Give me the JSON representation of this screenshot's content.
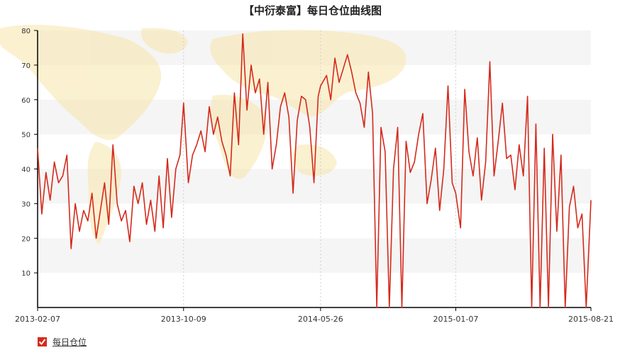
{
  "chart_data": {
    "type": "line",
    "title": "【中衍泰富】每日仓位曲线图",
    "xlabel": "",
    "ylabel": "",
    "ylim": [
      0,
      80
    ],
    "y_ticks": [
      10,
      20,
      30,
      40,
      50,
      60,
      70,
      80
    ],
    "x_ticks": [
      "2013-02-07",
      "2013-10-09",
      "2014-05-26",
      "2015-01-07",
      "2015-08-21"
    ],
    "xlim": [
      "2013-02-07",
      "2015-08-21"
    ],
    "grid": {
      "horizontal_bands": true,
      "vertical_dashed": true
    },
    "legend_position": "bottom-left",
    "series": [
      {
        "name": "每日仓位",
        "color": "#d42a1c",
        "x": [
          "2013-02-07",
          "2013-02-14",
          "2013-02-21",
          "2013-02-28",
          "2013-03-07",
          "2013-03-14",
          "2013-03-21",
          "2013-03-28",
          "2013-04-04",
          "2013-04-11",
          "2013-04-18",
          "2013-04-25",
          "2013-05-02",
          "2013-05-09",
          "2013-05-16",
          "2013-05-23",
          "2013-05-30",
          "2013-06-06",
          "2013-06-13",
          "2013-06-20",
          "2013-06-27",
          "2013-07-04",
          "2013-07-11",
          "2013-07-18",
          "2013-07-25",
          "2013-08-01",
          "2013-08-08",
          "2013-08-15",
          "2013-08-22",
          "2013-08-29",
          "2013-09-05",
          "2013-09-12",
          "2013-09-19",
          "2013-09-26",
          "2013-10-03",
          "2013-10-09",
          "2013-10-17",
          "2013-10-24",
          "2013-10-31",
          "2013-11-07",
          "2013-11-14",
          "2013-11-21",
          "2013-11-28",
          "2013-12-05",
          "2013-12-12",
          "2013-12-19",
          "2013-12-26",
          "2014-01-02",
          "2014-01-09",
          "2014-01-16",
          "2014-01-23",
          "2014-01-30",
          "2014-02-06",
          "2014-02-13",
          "2014-02-20",
          "2014-02-27",
          "2014-03-06",
          "2014-03-13",
          "2014-03-20",
          "2014-03-27",
          "2014-04-03",
          "2014-04-10",
          "2014-04-17",
          "2014-04-24",
          "2014-05-01",
          "2014-05-08",
          "2014-05-15",
          "2014-05-22",
          "2014-05-26",
          "2014-06-05",
          "2014-06-12",
          "2014-06-19",
          "2014-06-26",
          "2014-07-03",
          "2014-07-10",
          "2014-07-17",
          "2014-07-24",
          "2014-07-31",
          "2014-08-07",
          "2014-08-14",
          "2014-08-21",
          "2014-08-28",
          "2014-09-04",
          "2014-09-11",
          "2014-09-18",
          "2014-09-25",
          "2014-10-02",
          "2014-10-09",
          "2014-10-16",
          "2014-10-23",
          "2014-10-30",
          "2014-11-06",
          "2014-11-13",
          "2014-11-20",
          "2014-11-27",
          "2014-12-04",
          "2014-12-11",
          "2014-12-18",
          "2014-12-25",
          "2015-01-01",
          "2015-01-07",
          "2015-01-15",
          "2015-01-22",
          "2015-01-29",
          "2015-02-05",
          "2015-02-12",
          "2015-02-19",
          "2015-02-26",
          "2015-03-05",
          "2015-03-12",
          "2015-03-19",
          "2015-03-26",
          "2015-04-02",
          "2015-04-09",
          "2015-04-16",
          "2015-04-23",
          "2015-04-30",
          "2015-05-07",
          "2015-05-14",
          "2015-05-21",
          "2015-05-28",
          "2015-06-04",
          "2015-06-11",
          "2015-06-18",
          "2015-06-25",
          "2015-07-02",
          "2015-07-09",
          "2015-07-16",
          "2015-07-23",
          "2015-07-30",
          "2015-08-06",
          "2015-08-13",
          "2015-08-21"
        ],
        "values": [
          46,
          27,
          39,
          31,
          42,
          36,
          38,
          44,
          17,
          30,
          22,
          28,
          25,
          33,
          20,
          28,
          36,
          24,
          47,
          30,
          25,
          28,
          19,
          35,
          30,
          36,
          24,
          31,
          22,
          38,
          23,
          43,
          26,
          40,
          44,
          59,
          36,
          44,
          47,
          51,
          45,
          58,
          50,
          55,
          48,
          44,
          38,
          62,
          47,
          79,
          57,
          70,
          62,
          66,
          50,
          65,
          40,
          47,
          58,
          62,
          55,
          33,
          54,
          61,
          60,
          52,
          36,
          61,
          64,
          67,
          60,
          72,
          65,
          69,
          73,
          68,
          62,
          59,
          52,
          68,
          56,
          0,
          52,
          45,
          0,
          40,
          52,
          0,
          48,
          39,
          42,
          50,
          56,
          30,
          37,
          46,
          28,
          40,
          64,
          36,
          33,
          23,
          63,
          45,
          38,
          49,
          31,
          42,
          71,
          38,
          48,
          59,
          43,
          44,
          34,
          47,
          38,
          61,
          0,
          53,
          0,
          46,
          0,
          50,
          22,
          44,
          0,
          29,
          35,
          23,
          27,
          0,
          31
        ]
      }
    ]
  }
}
